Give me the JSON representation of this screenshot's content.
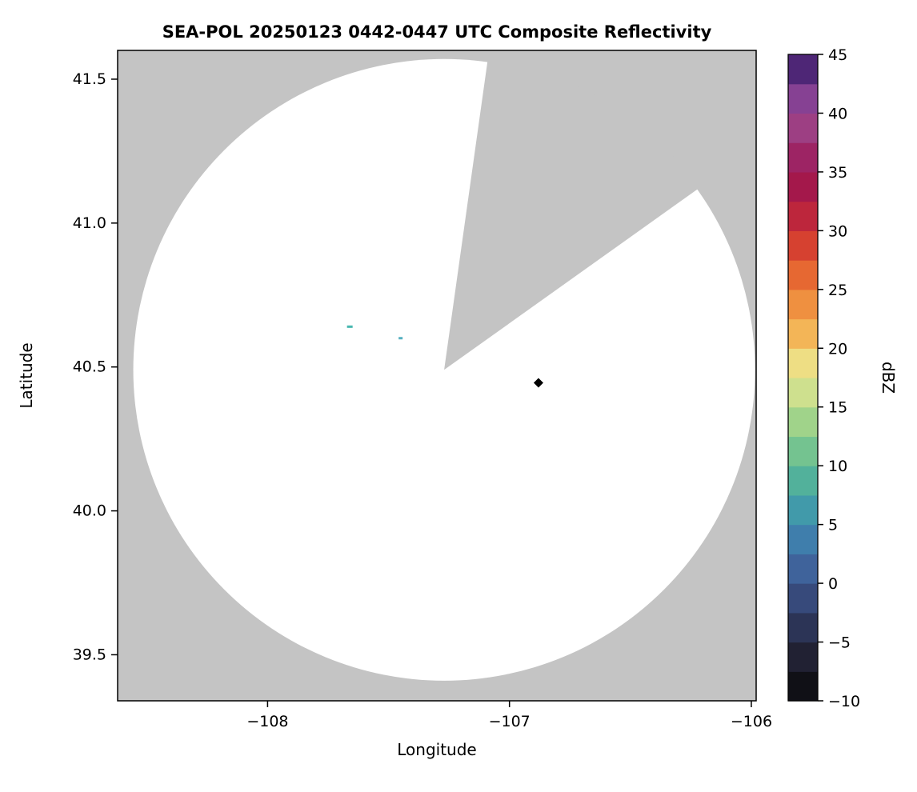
{
  "figure": {
    "background": "#ffffff"
  },
  "chart_data": {
    "type": "heatmap",
    "title": "SEA-POL 20250123 0442-0447 UTC Composite Reflectivity",
    "xlabel": "Longitude",
    "ylabel": "Latitude",
    "xlim": [
      -108.62,
      -105.98
    ],
    "ylim": [
      39.34,
      41.6
    ],
    "xticks": [
      {
        "value": -108,
        "label": "−108"
      },
      {
        "value": -107,
        "label": "−107"
      },
      {
        "value": -106,
        "label": "−106"
      }
    ],
    "yticks": [
      {
        "value": 39.5,
        "label": "39.5"
      },
      {
        "value": 40.0,
        "label": "40.0"
      },
      {
        "value": 40.5,
        "label": "40.5"
      },
      {
        "value": 41.0,
        "label": "41.0"
      },
      {
        "value": 41.5,
        "label": "41.5"
      }
    ],
    "plot_bg": "#c4c4c4",
    "grid": false,
    "coverage": {
      "center_lon": -107.27,
      "center_lat": 40.49,
      "radius_deg_lat": 1.08,
      "fill": "#ffffff",
      "blocked_sector_deg": [
        8,
        54.5
      ]
    },
    "echoes": [
      {
        "lon": -107.66,
        "lat": 40.64,
        "color": "#49b8b0",
        "w": 7,
        "h": 3
      },
      {
        "lon": -107.45,
        "lat": 40.6,
        "color": "#55b0c0",
        "w": 5,
        "h": 3
      }
    ],
    "marker": {
      "lon": -106.88,
      "lat": 40.445,
      "shape": "diamond",
      "color": "#000000",
      "size": 6
    },
    "colorbar": {
      "label": "dBZ",
      "min": -10,
      "max": 45,
      "cell_step": 2.5,
      "ticks": [
        {
          "value": -10,
          "label": "−10"
        },
        {
          "value": -5,
          "label": "−5"
        },
        {
          "value": 0,
          "label": "0"
        },
        {
          "value": 5,
          "label": "5"
        },
        {
          "value": 10,
          "label": "10"
        },
        {
          "value": 15,
          "label": "15"
        },
        {
          "value": 20,
          "label": "20"
        },
        {
          "value": 25,
          "label": "25"
        },
        {
          "value": 30,
          "label": "30"
        },
        {
          "value": 35,
          "label": "35"
        },
        {
          "value": 40,
          "label": "40"
        },
        {
          "value": 45,
          "label": "45"
        }
      ],
      "stops": [
        [
          -10,
          "#060606"
        ],
        [
          -8,
          "#161620"
        ],
        [
          -6,
          "#222336"
        ],
        [
          -4,
          "#2b3252"
        ],
        [
          -2,
          "#344270"
        ],
        [
          0,
          "#3c568e"
        ],
        [
          2,
          "#416aa2"
        ],
        [
          4,
          "#3f81ad"
        ],
        [
          6,
          "#4097ab"
        ],
        [
          8,
          "#4aab9f"
        ],
        [
          10,
          "#60bb95"
        ],
        [
          12,
          "#80c88d"
        ],
        [
          14,
          "#a5d489"
        ],
        [
          16,
          "#cadf8d"
        ],
        [
          18,
          "#e9e591"
        ],
        [
          19,
          "#f0dc80"
        ],
        [
          20,
          "#f4c766"
        ],
        [
          22,
          "#f2aa4e"
        ],
        [
          24,
          "#ee8c3e"
        ],
        [
          26,
          "#e76c33"
        ],
        [
          28,
          "#dc4b2e"
        ],
        [
          30,
          "#cb2f34"
        ],
        [
          32,
          "#b52040"
        ],
        [
          34,
          "#a2174c"
        ],
        [
          36,
          "#9d2160"
        ],
        [
          38,
          "#a03a7c"
        ],
        [
          40,
          "#97478f"
        ],
        [
          42,
          "#7b3d95"
        ],
        [
          43,
          "#63308d"
        ],
        [
          44,
          "#47226e"
        ],
        [
          45,
          "#2e1347"
        ]
      ]
    }
  }
}
